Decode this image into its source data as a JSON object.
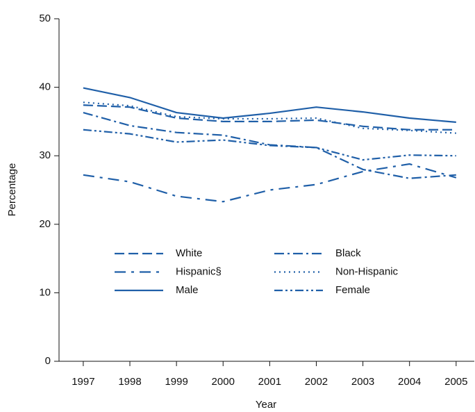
{
  "chart_data": {
    "type": "line",
    "x_label": "Year",
    "y_label": "Percentage",
    "x": [
      1997,
      1998,
      1999,
      2000,
      2001,
      2002,
      2003,
      2004,
      2005
    ],
    "xlim": [
      1996.48,
      2005.39
    ],
    "xticks": [
      1997,
      1998,
      1999,
      2000,
      2001,
      2002,
      2003,
      2004,
      2005
    ],
    "ylim": [
      0,
      50
    ],
    "yticks": [
      0,
      10,
      20,
      30,
      40,
      50
    ],
    "grid": false,
    "series": [
      {
        "name": "White",
        "color": "#1f5fa8",
        "style": "dashed",
        "values": [
          37.4,
          37.1,
          35.5,
          35.0,
          35.0,
          35.2,
          34.3,
          33.8,
          33.8
        ]
      },
      {
        "name": "Black",
        "color": "#1f5fa8",
        "style": "dashdot",
        "values": [
          36.3,
          34.4,
          33.4,
          33.0,
          31.6,
          31.2,
          28.0,
          26.7,
          27.2
        ]
      },
      {
        "name": "Hispanic§",
        "color": "#1f5fa8",
        "style": "longdashdot",
        "values": [
          27.2,
          26.2,
          24.1,
          23.3,
          25.0,
          25.8,
          27.7,
          28.8,
          26.8
        ]
      },
      {
        "name": "Non-Hispanic",
        "color": "#1f5fa8",
        "style": "dotted",
        "values": [
          37.8,
          37.3,
          35.7,
          35.4,
          35.4,
          35.5,
          34.0,
          33.7,
          33.3
        ]
      },
      {
        "name": "Male",
        "color": "#1f5fa8",
        "style": "solid",
        "values": [
          39.9,
          38.5,
          36.3,
          35.5,
          36.2,
          37.1,
          36.4,
          35.5,
          34.9
        ]
      },
      {
        "name": "Female",
        "color": "#1f5fa8",
        "style": "dashdotdot",
        "values": [
          33.8,
          33.2,
          32.0,
          32.3,
          31.5,
          31.2,
          29.4,
          30.1,
          30.0
        ]
      }
    ]
  }
}
